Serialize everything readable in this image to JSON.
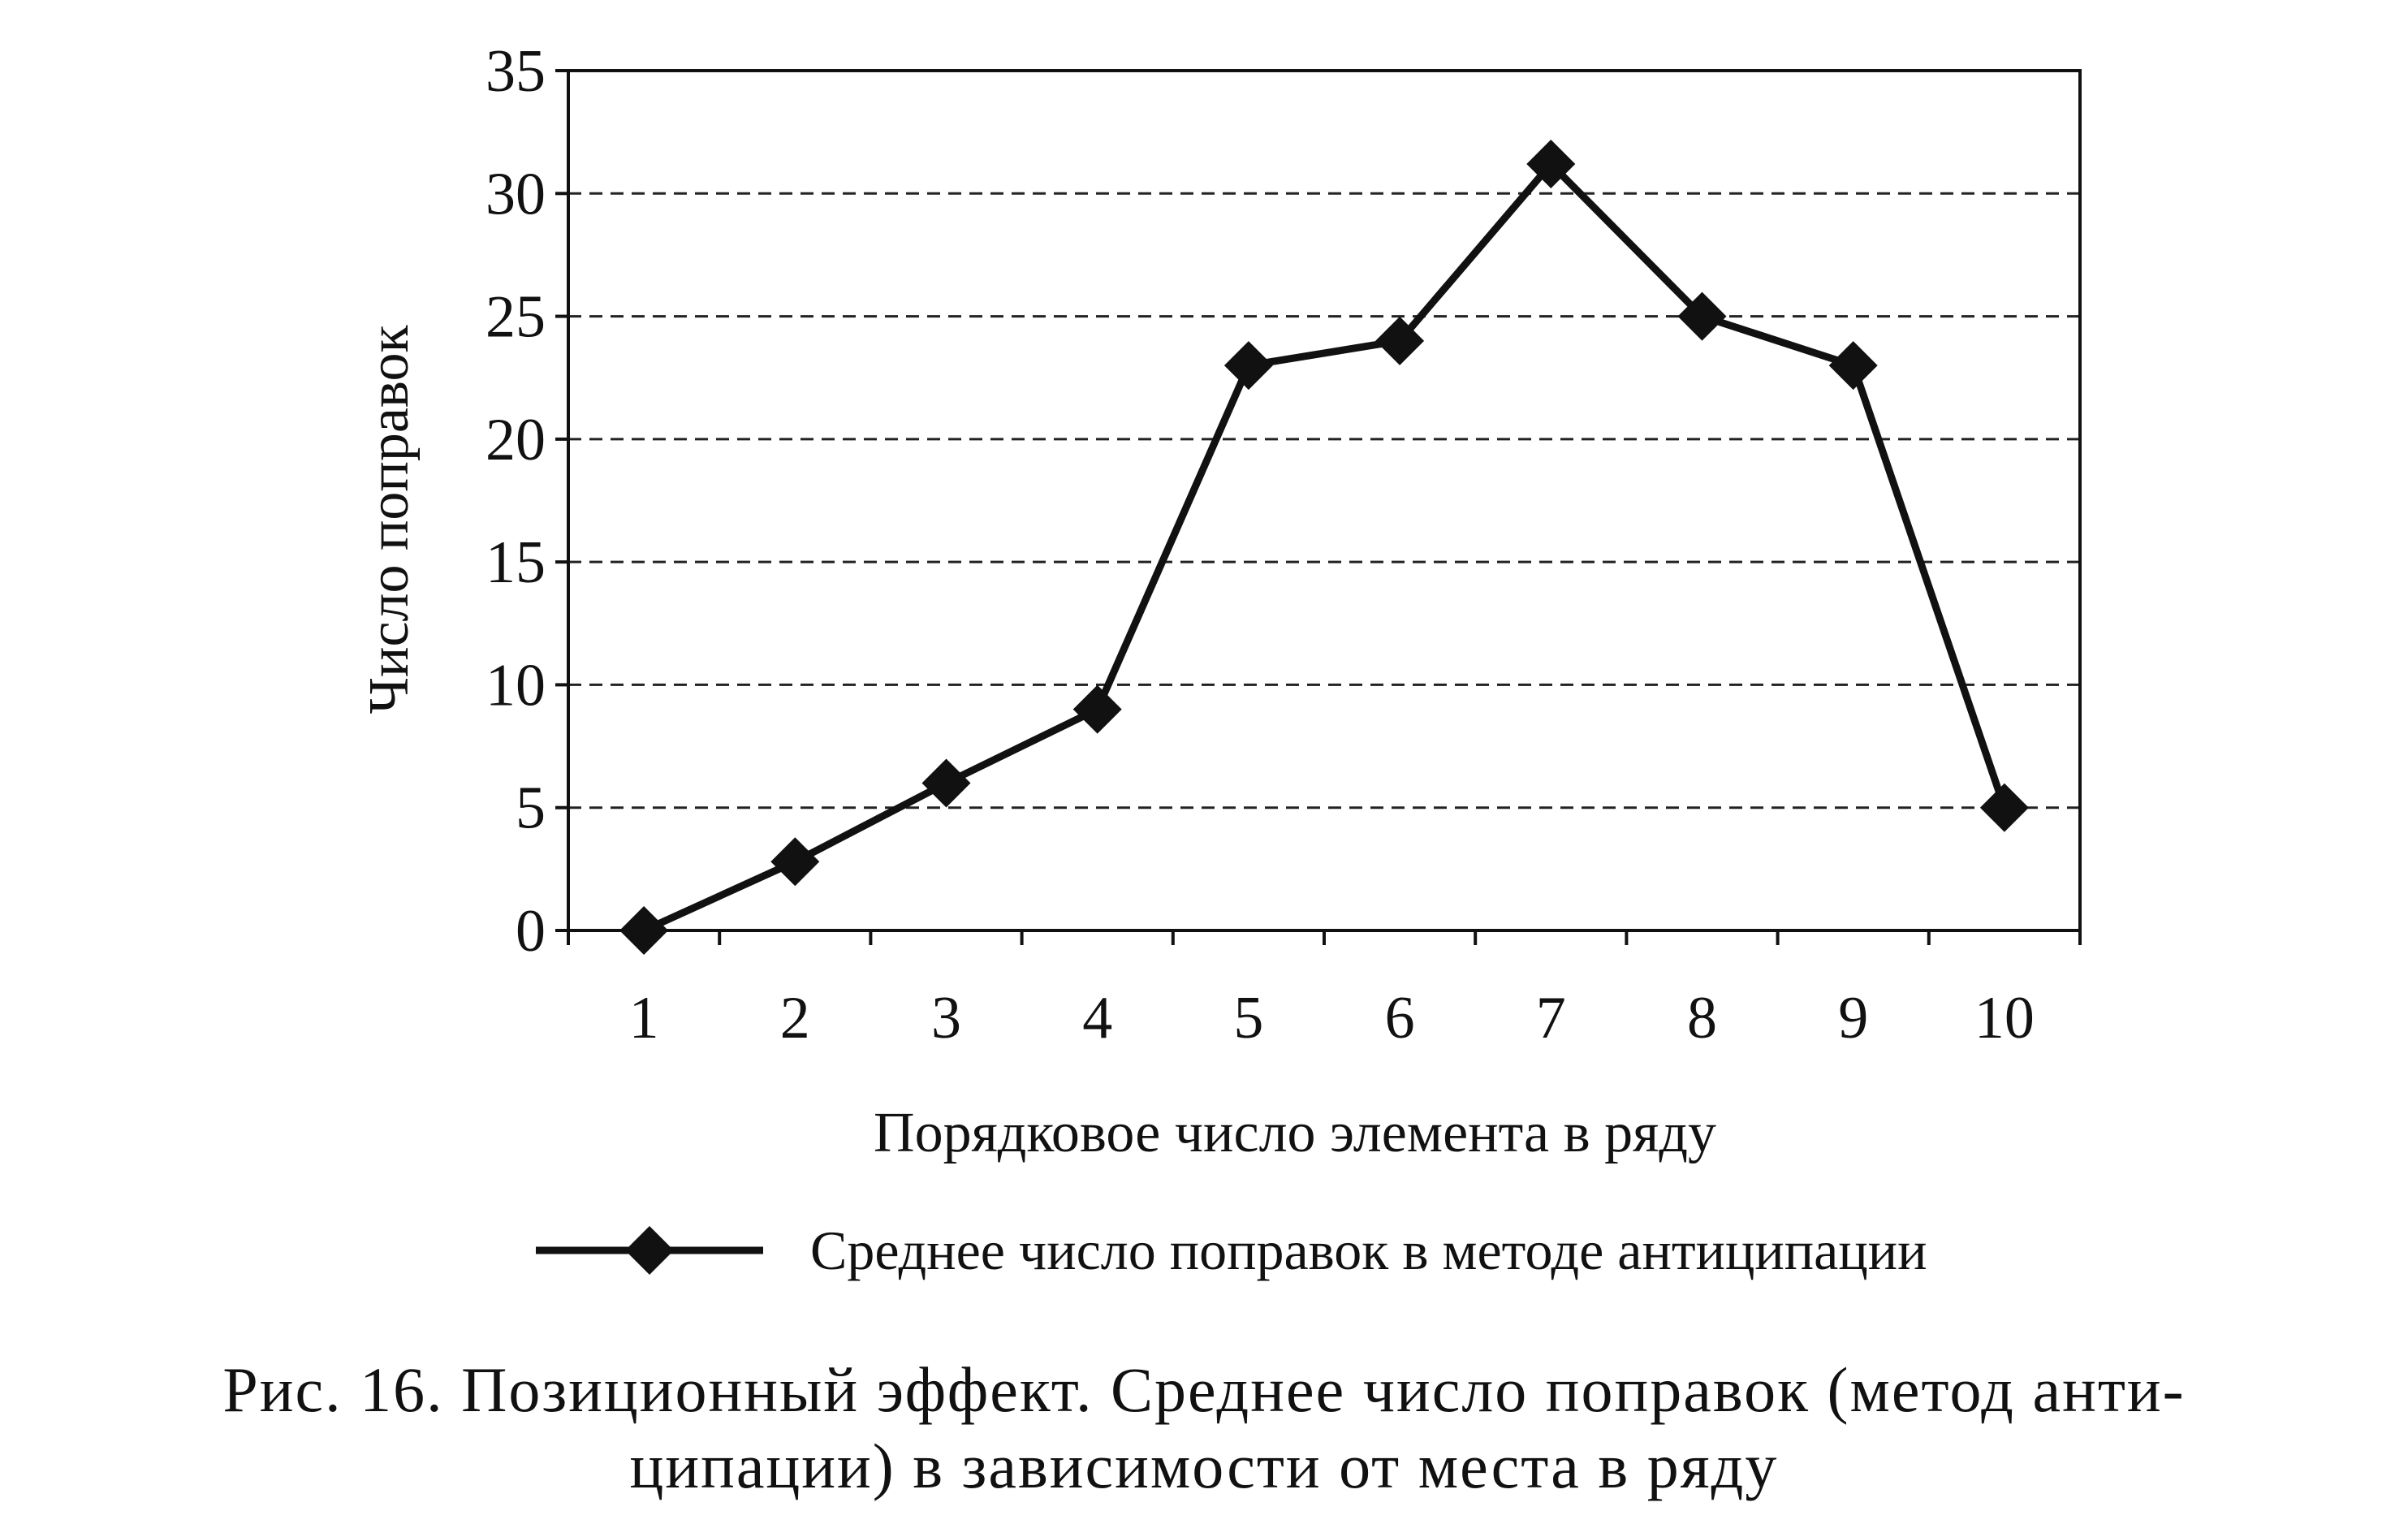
{
  "chart_data": {
    "type": "line",
    "title": "",
    "xlabel": "Порядковое число элемента в ряду",
    "ylabel": "Число поправок",
    "categories": [
      "1",
      "2",
      "3",
      "4",
      "5",
      "6",
      "7",
      "8",
      "9",
      "10"
    ],
    "series": [
      {
        "name": "Среднее число поправок в методе антиципации",
        "values": [
          0,
          2.8,
          6,
          9,
          23,
          24,
          31.2,
          25,
          23,
          5
        ],
        "marker": "diamond",
        "color": "#111111"
      }
    ],
    "ylim": [
      0,
      35
    ],
    "yticks": [
      "0",
      "5",
      "10",
      "15",
      "20",
      "25",
      "30",
      "35"
    ],
    "grid": "horizontal dashed",
    "legend_position": "bottom"
  },
  "caption": {
    "line1": "Рис. 16. Позиционный эффект. Среднее число поправок (метод анти-",
    "line2": "ципации) в зависимости от места в ряду"
  }
}
